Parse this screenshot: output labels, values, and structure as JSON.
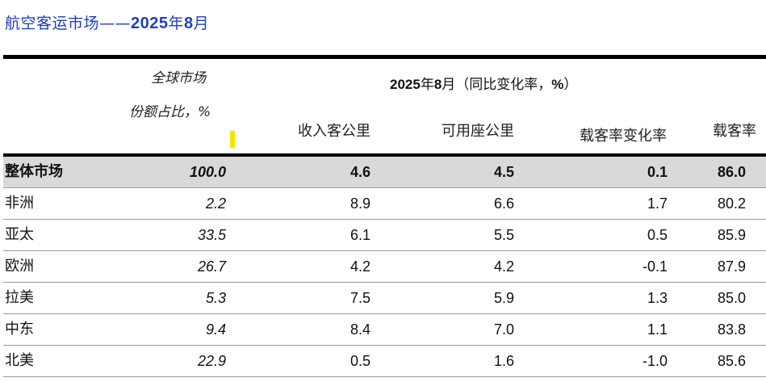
{
  "title": {
    "prefix": "航空客运市场——",
    "year": "2025",
    "year_suffix": "年",
    "month": "8",
    "month_suffix": "月"
  },
  "header": {
    "share_line1": "全球市场",
    "share_line2": "份额占比，%",
    "group_year": "2025",
    "group_year_suffix": "年",
    "group_month": "8",
    "group_rest": "月（同比变化率，",
    "group_pct": "%",
    "group_close": "）",
    "columns": [
      "收入客公里",
      "可用座公里",
      "载客率变化率",
      "载客率"
    ]
  },
  "rows": [
    {
      "name": "整体市场",
      "share": "100.0",
      "rpk": "4.6",
      "ask": "4.5",
      "plf": "0.1",
      "lf": "86.0",
      "total": true
    },
    {
      "name": "非洲",
      "share": "2.2",
      "rpk": "8.9",
      "ask": "6.6",
      "plf": "1.7",
      "lf": "80.2"
    },
    {
      "name": "亚太",
      "share": "33.5",
      "rpk": "6.1",
      "ask": "5.5",
      "plf": "0.5",
      "lf": "85.9"
    },
    {
      "name": "欧洲",
      "share": "26.7",
      "rpk": "4.2",
      "ask": "4.2",
      "plf": "-0.1",
      "lf": "87.9"
    },
    {
      "name": "拉美",
      "share": "5.3",
      "rpk": "7.5",
      "ask": "5.9",
      "plf": "1.3",
      "lf": "85.0"
    },
    {
      "name": "中东",
      "share": "9.4",
      "rpk": "8.4",
      "ask": "7.0",
      "plf": "1.1",
      "lf": "83.8"
    },
    {
      "name": "北美",
      "share": "22.9",
      "rpk": "0.5",
      "ask": "1.6",
      "plf": "-1.0",
      "lf": "85.6"
    }
  ],
  "colors": {
    "title": "#1f3fbf",
    "total_row_bg": "#d9d9d9",
    "marker": "#f2e600"
  }
}
